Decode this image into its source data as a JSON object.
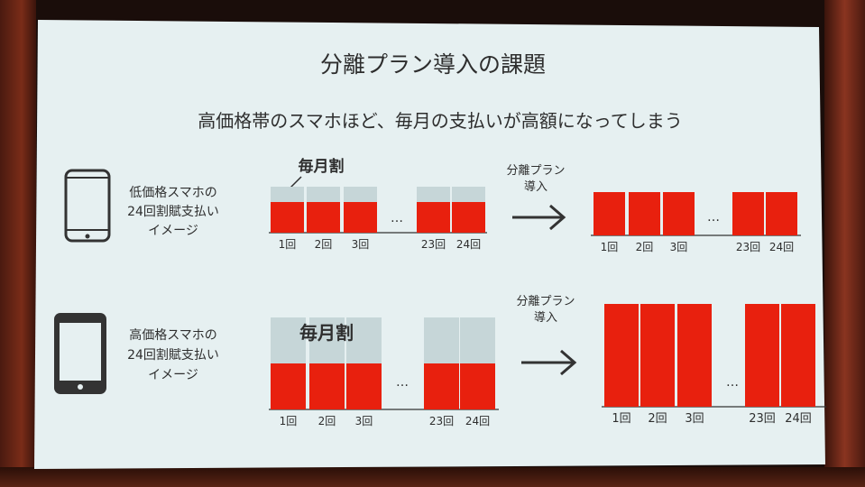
{
  "slide": {
    "title": "分離プラン導入の課題",
    "subtitle": "高価格帯のスマホほど、毎月の支払いが高額になってしまう"
  },
  "colors": {
    "payment": "#e8200e",
    "discount": "#c6d6d8",
    "background": "#e6f0f1",
    "text": "#2e2e2e"
  },
  "chart_data": [
    {
      "type": "bar",
      "label": "低価格スマホの 24回割賦支払い イメージ",
      "label_lines": [
        "低価格スマホの",
        "24回割賦支払い",
        "イメージ"
      ],
      "icon": "smartphone-outline-icon",
      "annotation": "毎月割",
      "categories": [
        "1回",
        "2回",
        "3回",
        "23回",
        "24回"
      ],
      "series": [
        {
          "name": "毎月割",
          "values": [
            1,
            1,
            1,
            1,
            1
          ]
        },
        {
          "values": [
            2,
            2,
            2,
            2,
            2
          ]
        }
      ],
      "ellipsis": "…",
      "arrow_label": [
        "分離プラン",
        "導入"
      ],
      "after": {
        "categories": [
          "1回",
          "2回",
          "3回",
          "23回",
          "24回"
        ],
        "values": [
          3,
          3,
          3,
          3,
          3
        ]
      }
    },
    {
      "type": "bar",
      "label": "高価格スマホの 24回割賦支払い イメージ",
      "label_lines": [
        "高価格スマホの",
        "24回割賦支払い",
        "イメージ"
      ],
      "icon": "smartphone-filled-icon",
      "annotation": "毎月割",
      "categories": [
        "1回",
        "2回",
        "3回",
        "23回",
        "24回"
      ],
      "series": [
        {
          "name": "毎月割",
          "values": [
            3,
            3,
            3,
            3,
            3
          ]
        },
        {
          "values": [
            3,
            3,
            3,
            3,
            3
          ]
        }
      ],
      "ellipsis": "…",
      "arrow_label": [
        "分離プラン",
        "導入"
      ],
      "after": {
        "categories": [
          "1回",
          "2回",
          "3回",
          "23回",
          "24回"
        ],
        "values": [
          6,
          6,
          6,
          6,
          6
        ]
      }
    }
  ]
}
